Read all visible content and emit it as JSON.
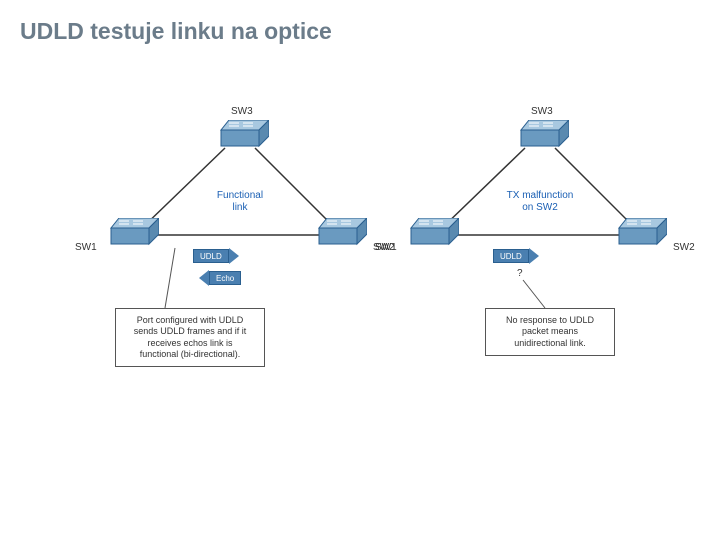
{
  "title": "UDLD testuje linku na optice",
  "colors": {
    "title": "#6b7c8a",
    "switch_top": "#a8c8e0",
    "switch_side": "#6a9ac0",
    "switch_border": "#2a5f8f",
    "link_line": "#333333",
    "arrow_fill": "#4a7fb0",
    "arrow_border": "#2a5f8f",
    "callout_border": "#555555",
    "blue_text": "#1a5fb4"
  },
  "panels": {
    "left": {
      "switches": {
        "top": "SW3",
        "left": "SW1",
        "right": "SW2"
      },
      "center_label": "Functional\nlink",
      "arrow_top": {
        "label": "UDLD",
        "dir": "right"
      },
      "arrow_bottom": {
        "label": "Echo",
        "dir": "left"
      },
      "callout": "Port configured with UDLD\nsends UDLD frames and if it\nreceives echos link is\nfunctional (bi-directional)."
    },
    "right": {
      "switches": {
        "top": "SW3",
        "left": "SW1",
        "right": "SW2"
      },
      "center_label": "TX malfunction\non SW2",
      "arrow_top": {
        "label": "UDLD",
        "dir": "right"
      },
      "question": "?",
      "callout": "No response to UDLD\npacket means\nunidirectional link."
    }
  }
}
